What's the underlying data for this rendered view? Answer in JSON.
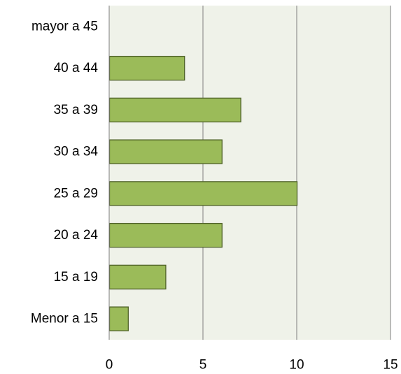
{
  "chart_data": {
    "type": "bar",
    "orientation": "horizontal",
    "categories": [
      "Menor a 15",
      "15 a 19",
      "20 a 24",
      "25 a 29",
      "30 a 34",
      "35 a 39",
      "40 a 44",
      "mayor a 45"
    ],
    "values": [
      1,
      3,
      6,
      10,
      6,
      7,
      4,
      0
    ],
    "xlim": [
      0,
      15
    ],
    "x_ticks": [
      "0",
      "5",
      "10",
      "15"
    ],
    "grid": "vertical",
    "legend": "none",
    "title": "",
    "xlabel": "",
    "ylabel": "",
    "colors": {
      "bar_fill": "#9bbb59",
      "bar_stroke": "#4f6228",
      "plot_bg": "#eff2e9",
      "grid": "#7f7f7f"
    }
  }
}
